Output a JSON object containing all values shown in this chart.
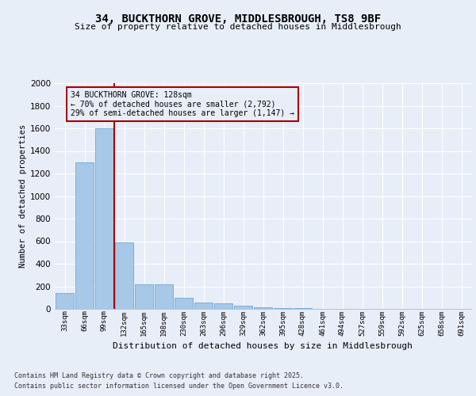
{
  "title_line1": "34, BUCKTHORN GROVE, MIDDLESBROUGH, TS8 9BF",
  "title_line2": "Size of property relative to detached houses in Middlesbrough",
  "xlabel": "Distribution of detached houses by size in Middlesbrough",
  "ylabel": "Number of detached properties",
  "categories": [
    "33sqm",
    "66sqm",
    "99sqm",
    "132sqm",
    "165sqm",
    "198sqm",
    "230sqm",
    "263sqm",
    "296sqm",
    "329sqm",
    "362sqm",
    "395sqm",
    "428sqm",
    "461sqm",
    "494sqm",
    "527sqm",
    "559sqm",
    "592sqm",
    "625sqm",
    "658sqm",
    "691sqm"
  ],
  "values": [
    140,
    1300,
    1600,
    590,
    220,
    220,
    100,
    55,
    50,
    25,
    15,
    10,
    5,
    3,
    2,
    2,
    1,
    1,
    1,
    1,
    1
  ],
  "bar_color": "#a8c8e8",
  "bar_edge_color": "#5a9fd4",
  "background_color": "#e8eef8",
  "grid_color": "#ffffff",
  "vline_x_index": 2.5,
  "vline_color": "#aa0000",
  "annotation_text": "34 BUCKTHORN GROVE: 128sqm\n← 70% of detached houses are smaller (2,792)\n29% of semi-detached houses are larger (1,147) →",
  "annotation_box_color": "#aa0000",
  "footnote1": "Contains HM Land Registry data © Crown copyright and database right 2025.",
  "footnote2": "Contains public sector information licensed under the Open Government Licence v3.0.",
  "ylim": [
    0,
    2000
  ],
  "yticks": [
    0,
    200,
    400,
    600,
    800,
    1000,
    1200,
    1400,
    1600,
    1800,
    2000
  ]
}
